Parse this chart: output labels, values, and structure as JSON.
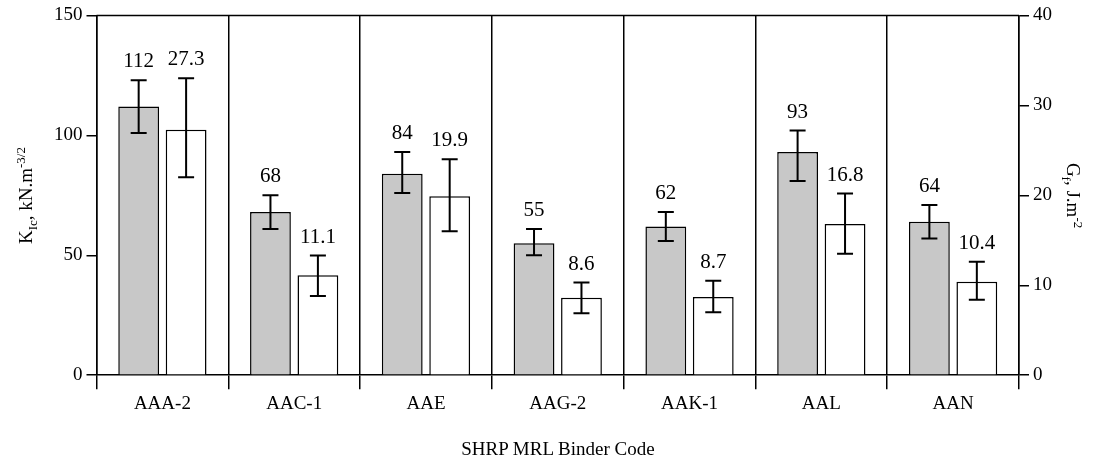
{
  "chart_data": {
    "type": "bar",
    "xlabel": "SHRP MRL Binder Code",
    "ylabel": "K$_{Ic}$, kN.m$^{-3/2}$",
    "y2label": "G$_{f}$, J.m$^{-2}$",
    "categories": [
      "AAA-2",
      "AAC-1",
      "AAE",
      "AAG-2",
      "AAK-1",
      "AAL",
      "AAN"
    ],
    "series": [
      {
        "color": "#c8c8c8",
        "values": [
          112,
          68,
          84,
          55,
          62,
          93,
          64
        ],
        "errors": [
          [
            101,
            123
          ],
          [
            61,
            75
          ],
          [
            76,
            93
          ],
          [
            50,
            61
          ],
          [
            56,
            68
          ],
          [
            81,
            102
          ],
          [
            57,
            71
          ]
        ]
      },
      {
        "color": "#ffffff",
        "axis": "y2",
        "values": [
          27.3,
          11.1,
          19.9,
          8.6,
          8.7,
          16.8,
          10.4
        ],
        "errors": [
          [
            22,
            33
          ],
          [
            8.8,
            13.3
          ],
          [
            16,
            24
          ],
          [
            6.9,
            10.3
          ],
          [
            7,
            10.5
          ],
          [
            13.5,
            20.2
          ],
          [
            8.4,
            12.6
          ]
        ]
      }
    ],
    "ylim": [
      0,
      150
    ],
    "yticks": [
      0,
      50,
      100,
      150
    ],
    "y2lim": [
      0,
      40
    ],
    "y2ticks": [
      0,
      10,
      20,
      30,
      40
    ],
    "grid": "x",
    "legend": false,
    "data_labels": true
  }
}
